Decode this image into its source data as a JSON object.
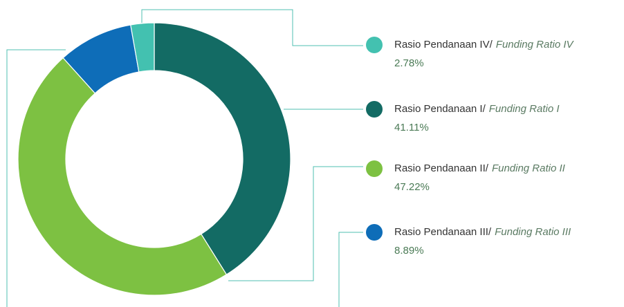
{
  "chart_data": {
    "type": "donut",
    "categories": [
      "Rasio Pendanaan I/",
      "Rasio Pendanaan II/",
      "Rasio Pendanaan III/",
      "Rasio Pendanaan IV/"
    ],
    "translations": [
      "Funding Ratio I",
      "Funding Ratio II",
      "Funding Ratio III",
      "Funding Ratio IV"
    ],
    "values": [
      41.11,
      47.22,
      8.89,
      2.78
    ],
    "value_labels": [
      "41.11%",
      "47.22%",
      "8.89%",
      "2.78%"
    ],
    "colors": [
      "#136b64",
      "#7dc142",
      "#0e6db8",
      "#43c1b0"
    ]
  }
}
